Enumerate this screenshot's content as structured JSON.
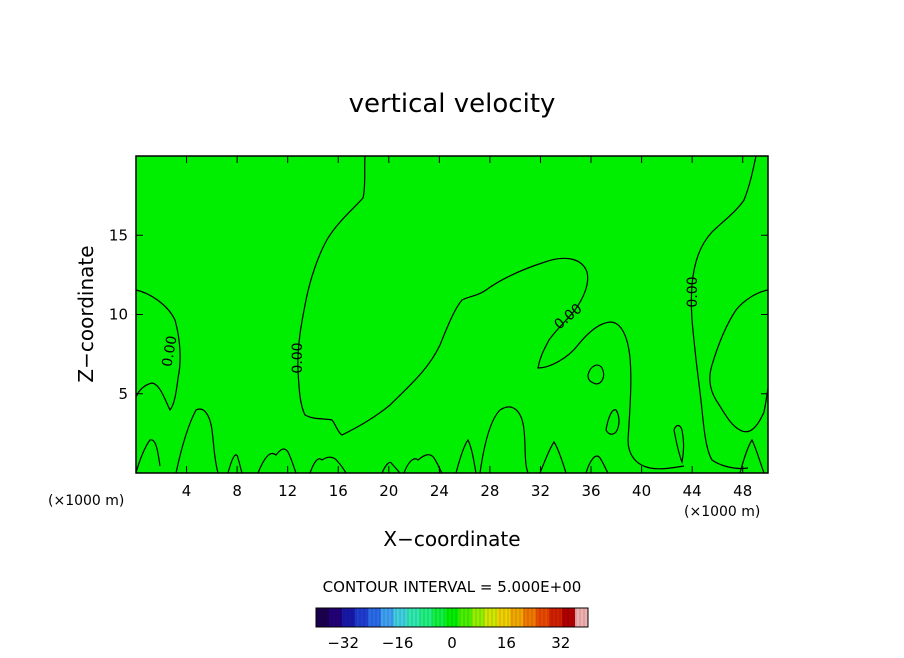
{
  "chart_data": {
    "type": "contour",
    "title": "vertical velocity",
    "xlabel": "X−coordinate",
    "ylabel": "Z−coordinate",
    "x_unit_left": "(×1000 m)",
    "x_unit_right": "(×1000 m)",
    "xlim": [
      0,
      50
    ],
    "ylim": [
      0,
      20
    ],
    "xticks": [
      4,
      8,
      12,
      16,
      20,
      24,
      28,
      32,
      36,
      40,
      44,
      48
    ],
    "yticks": [
      5,
      10,
      15
    ],
    "grid": false,
    "contour_level": 0.0,
    "contour_labels": [
      "0.00",
      "0.00",
      "0.00",
      "0.00"
    ],
    "contour_interval_text": "CONTOUR INTERVAL = 5.000E+00",
    "colorbar": {
      "min": -40,
      "max": 40,
      "ticks": [
        -32,
        -16,
        0,
        16,
        32
      ],
      "tick_labels": [
        "−32",
        "−16",
        "0",
        "16",
        "32"
      ]
    },
    "field_color": "#00ee00",
    "colors": [
      "#1c0050",
      "#220078",
      "#1818a8",
      "#1e3cd0",
      "#2a6ae8",
      "#3ea0f0",
      "#40d0e0",
      "#30e8b0",
      "#20f080",
      "#10f040",
      "#00ee00",
      "#48f000",
      "#90f000",
      "#d0e800",
      "#f0d000",
      "#f0a800",
      "#f07800",
      "#e84800",
      "#d02000",
      "#b00000",
      "#f0b0b0"
    ]
  }
}
